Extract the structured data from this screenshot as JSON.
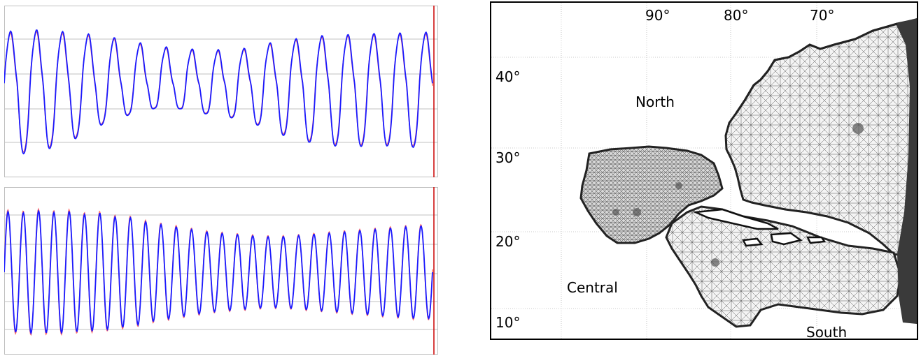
{
  "chart_data": [
    {
      "type": "line",
      "title": "",
      "xlabel": "",
      "ylabel": "",
      "grid": true,
      "legend": "none",
      "colors": {
        "observed": "#1a1aff",
        "model": "#ff6b6b",
        "axis": "#c0c0c0",
        "end_marker": "#cc0000"
      },
      "series": [
        {
          "color": "#1a1aff",
          "envelope": {
            "highs": [
              0.9,
              0.88,
              0.92,
              0.9,
              0.88,
              0.89,
              0.86,
              0.84,
              0.85,
              0.74,
              0.76,
              0.68,
              0.7,
              0.62,
              0.66,
              0.6,
              0.64,
              0.6,
              0.66,
              0.62,
              0.74,
              0.7,
              0.8,
              0.76,
              0.85,
              0.8,
              0.88,
              0.8,
              0.89,
              0.82,
              0.89,
              0.84,
              0.9,
              0.85
            ],
            "lows": [
              -0.95,
              -0.88,
              -0.8,
              -0.62,
              -0.4,
              -0.3,
              -0.2,
              -0.28,
              -0.35,
              -0.4,
              -0.58,
              -0.7,
              -0.78,
              -0.8,
              -0.78,
              -0.8,
              -0.82
            ]
          }
        },
        {
          "color": "#ff6b6b",
          "envelope": "model"
        }
      ]
    },
    {
      "type": "line",
      "title": "",
      "xlabel": "",
      "ylabel": "",
      "grid": true,
      "legend": "none",
      "series": [
        {
          "color": "#1a1aff",
          "amplitude": [
            0.95,
            0.92,
            0.96,
            0.93,
            0.95,
            0.9,
            0.92,
            0.86,
            0.85,
            0.78,
            0.74,
            0.7,
            0.66,
            0.62,
            0.6,
            0.58,
            0.56,
            0.55,
            0.56,
            0.58,
            0.6,
            0.62,
            0.64,
            0.66,
            0.68,
            0.7,
            0.72,
            0.72
          ]
        },
        {
          "color": "#ff6b6b",
          "amplitude": "model"
        }
      ]
    }
  ],
  "map": {
    "lat_labels": [
      "40°",
      "30°",
      "20°",
      "10°"
    ],
    "lon_labels": [
      "90°",
      "80°",
      "70°"
    ],
    "region_labels": [
      "North",
      "Central",
      "South"
    ]
  }
}
